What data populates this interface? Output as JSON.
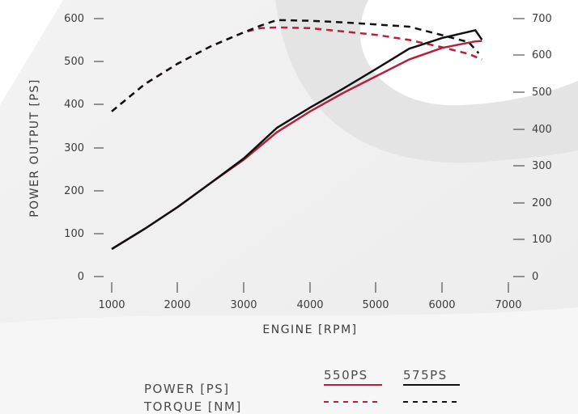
{
  "colors": {
    "variant_550": "#b5203c",
    "variant_575": "#111111",
    "text": "#3c3c3c"
  },
  "chart_data": {
    "type": "line",
    "title": "",
    "xlabel": "ENGINE [RPM]",
    "ylabel": "POWER OUTPUT [PS]",
    "y2label": "",
    "xlim": [
      1000,
      7000
    ],
    "ylim": [
      0,
      600
    ],
    "y2lim": [
      0,
      700
    ],
    "xticks": [
      1000,
      2000,
      3000,
      4000,
      5000,
      6000,
      7000
    ],
    "yticks": [
      0,
      100,
      200,
      300,
      400,
      500,
      600
    ],
    "y2ticks": [
      0,
      100,
      200,
      300,
      400,
      500,
      600,
      700
    ],
    "grid": false,
    "legend": {
      "position": "bottom",
      "column_headers": [
        "550PS",
        "575PS"
      ],
      "row_labels": [
        "POWER [PS]",
        "TORQUE [NM]"
      ]
    },
    "series": [
      {
        "name": "550PS",
        "metric": "power",
        "axis": "left",
        "style": "solid",
        "color": "#b5203c",
        "x": [
          1000,
          1500,
          2000,
          2500,
          3000,
          3500,
          4000,
          4500,
          5000,
          5500,
          6000,
          6500,
          6600
        ],
        "y": [
          64,
          111,
          162,
          218,
          272,
          336,
          384,
          427,
          466,
          505,
          532,
          547,
          548
        ]
      },
      {
        "name": "575PS",
        "metric": "power",
        "axis": "left",
        "style": "solid",
        "color": "#111111",
        "x": [
          1000,
          1500,
          2000,
          2500,
          3000,
          3500,
          4000,
          4500,
          5000,
          5500,
          6000,
          6500,
          6600
        ],
        "y": [
          64,
          111,
          162,
          218,
          275,
          346,
          393,
          437,
          483,
          530,
          555,
          573,
          551
        ]
      },
      {
        "name": "550PS",
        "metric": "torque",
        "axis": "right",
        "style": "dashed",
        "color": "#b5203c",
        "x": [
          1000,
          1500,
          2000,
          2500,
          3000,
          3250,
          3500,
          4000,
          4500,
          5000,
          5500,
          6000,
          6400,
          6600
        ],
        "y": [
          448,
          522,
          578,
          625,
          663,
          674,
          676,
          674,
          665,
          656,
          642,
          622,
          604,
          589
        ]
      },
      {
        "name": "575PS",
        "metric": "torque",
        "axis": "right",
        "style": "dashed",
        "color": "#111111",
        "x": [
          1000,
          1500,
          2000,
          2500,
          3000,
          3250,
          3500,
          4000,
          4500,
          5000,
          5500,
          6000,
          6400,
          6550
        ],
        "y": [
          448,
          522,
          578,
          625,
          663,
          681,
          696,
          694,
          690,
          684,
          678,
          655,
          636,
          606
        ]
      }
    ]
  }
}
